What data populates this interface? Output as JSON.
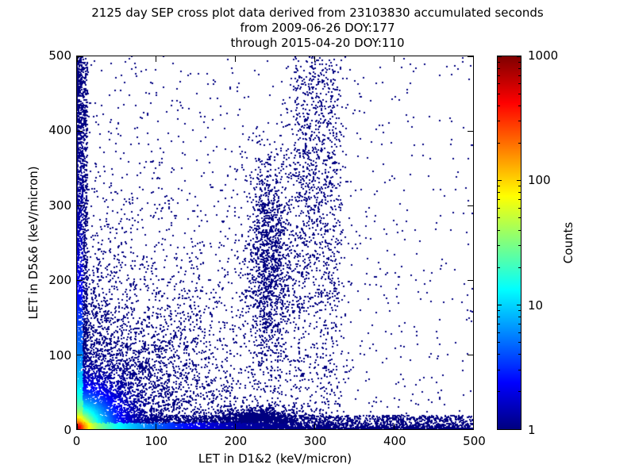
{
  "figure": {
    "title_line1": "2125 day SEP cross plot data derived from 23103830 accumulated seconds",
    "title_line2": "from 2009-06-26 DOY:177",
    "title_line3": "through 2015-04-20 DOY:110"
  },
  "chart_data": {
    "type": "scatter",
    "subtype": "2d-density-histogram",
    "title": "2125 day SEP cross plot data derived from 23103830 accumulated seconds from 2009-06-26 DOY:177 through 2015-04-20 DOY:110",
    "xlabel": "LET in D1&2 (keV/micron)",
    "ylabel": "LET in D5&6 (keV/micron)",
    "xlim": [
      0,
      500
    ],
    "ylim": [
      0,
      500
    ],
    "xticks": [
      0,
      100,
      200,
      300,
      400,
      500
    ],
    "yticks": [
      0,
      100,
      200,
      300,
      400,
      500
    ],
    "grid": false,
    "colorbar": {
      "label": "Counts",
      "scale": "log",
      "ticks": [
        1,
        10,
        100,
        1000
      ],
      "range": [
        1,
        1000
      ],
      "colormap": "jet",
      "low_color": "#00007f",
      "high_color": "#7f0000"
    },
    "distribution": {
      "seed": 42,
      "count_model": {
        "core_amp": 900,
        "core_scale": 4.5,
        "halo_amp": 90,
        "halo_scale": 14,
        "hband_amp": 34,
        "hband_scale": 45,
        "vband_amp": 20,
        "vband_scale": 70,
        "log_max": 3
      },
      "clusters": [
        {
          "kind": "expcorner",
          "n": 5200,
          "scale": 7
        },
        {
          "kind": "expcorner",
          "n": 1400,
          "scale": 25
        },
        {
          "kind": "expcorner",
          "n": 2600,
          "scale": 90
        },
        {
          "kind": "hband",
          "n": 4200,
          "y_max": 18,
          "x_pow": 1.4
        },
        {
          "kind": "vband",
          "n": 2600,
          "x_max": 14,
          "y_pow": 1.2
        },
        {
          "kind": "rays",
          "n": 2400,
          "angles": [
            14,
            22,
            30,
            38,
            45,
            45,
            52,
            60,
            68,
            76,
            83
          ],
          "r_scale": 130,
          "r_max": 500,
          "jitter": 2
        },
        {
          "kind": "blob",
          "n": 1400,
          "cx": 243,
          "cy": 220,
          "sx": 14,
          "sy": 75
        },
        {
          "kind": "blob",
          "n": 600,
          "cx": 300,
          "cy": 330,
          "sx": 20,
          "sy": 110
        },
        {
          "kind": "blob",
          "n": 1100,
          "cx": 228,
          "cy": 13,
          "sx": 26,
          "sy": 8
        },
        {
          "kind": "vstrip",
          "n": 700,
          "x0": 275,
          "x1": 335,
          "y_pow": 0.9
        },
        {
          "kind": "uniform",
          "n": 900,
          "x_pow": 1.15,
          "y_pow": 1.15
        }
      ]
    }
  }
}
